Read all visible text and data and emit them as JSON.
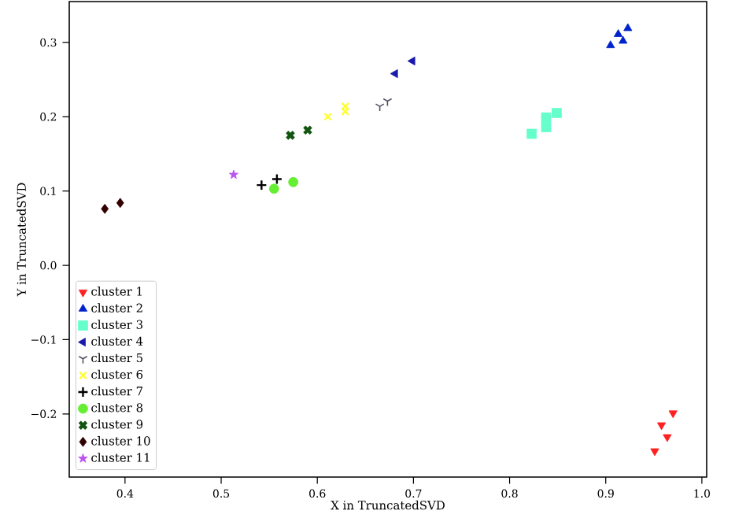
{
  "chart_data": {
    "type": "scatter",
    "xlabel": "X in TruncatedSVD",
    "ylabel": "Y in TruncatedSVD",
    "xlim": [
      0.342,
      1.005
    ],
    "ylim": [
      -0.285,
      0.355
    ],
    "xticks": [
      0.4,
      0.5,
      0.6,
      0.7,
      0.8,
      0.9,
      {
        "value": 1.0,
        "label": "1.0"
      }
    ],
    "yticks": [
      {
        "value": -0.2,
        "label": "−0.2"
      },
      {
        "value": -0.1,
        "label": "−0.1"
      },
      {
        "value": 0.0,
        "label": "0.0"
      },
      0.1,
      0.2,
      0.3
    ],
    "legend": "bottom left",
    "grid": false,
    "series": [
      {
        "name": "cluster 1",
        "color": "#ff2020",
        "marker": "triangle_down",
        "x": [
          0.97,
          0.958,
          0.964,
          0.951
        ],
        "values": [
          -0.199,
          -0.215,
          -0.231,
          -0.25
        ]
      },
      {
        "name": "cluster 2",
        "color": "#0022cc",
        "marker": "triangle",
        "x": [
          0.905,
          0.913,
          0.918,
          0.923
        ],
        "values": [
          0.296,
          0.311,
          0.302,
          0.319
        ]
      },
      {
        "name": "cluster 3",
        "color": "#66ffcc",
        "marker": "square",
        "x": [
          0.823,
          0.838,
          0.838,
          0.849
        ],
        "values": [
          0.177,
          0.186,
          0.199,
          0.205
        ]
      },
      {
        "name": "cluster 4",
        "color": "#1a1aaa",
        "marker": "triangle_left",
        "x": [
          0.681,
          0.699
        ],
        "values": [
          0.258,
          0.275
        ]
      },
      {
        "name": "cluster 5",
        "color": "#555566",
        "marker": "cross",
        "x": [
          0.665,
          0.673
        ],
        "values": [
          0.214,
          0.221
        ]
      },
      {
        "name": "cluster 6",
        "color": "#ffff33",
        "marker": "x",
        "x": [
          0.611,
          0.629,
          0.629
        ],
        "values": [
          0.2,
          0.207,
          0.214
        ]
      },
      {
        "name": "cluster 7",
        "color": "#000000",
        "marker": "plus",
        "x": [
          0.542,
          0.558
        ],
        "values": [
          0.108,
          0.116
        ]
      },
      {
        "name": "cluster 8",
        "color": "#66ee33",
        "marker": "circle",
        "x": [
          0.555,
          0.575
        ],
        "values": [
          0.103,
          0.112
        ]
      },
      {
        "name": "cluster 9",
        "color": "#115511",
        "marker": "cross_filled",
        "x": [
          0.572,
          0.59
        ],
        "values": [
          0.175,
          0.182
        ]
      },
      {
        "name": "cluster 10",
        "color": "#330000",
        "marker": "diamond",
        "x": [
          0.379,
          0.395
        ],
        "values": [
          0.076,
          0.084
        ]
      },
      {
        "name": "cluster 11",
        "color": "#bb55ee",
        "marker": "star",
        "x": [
          0.513
        ],
        "values": [
          0.122
        ]
      }
    ]
  }
}
